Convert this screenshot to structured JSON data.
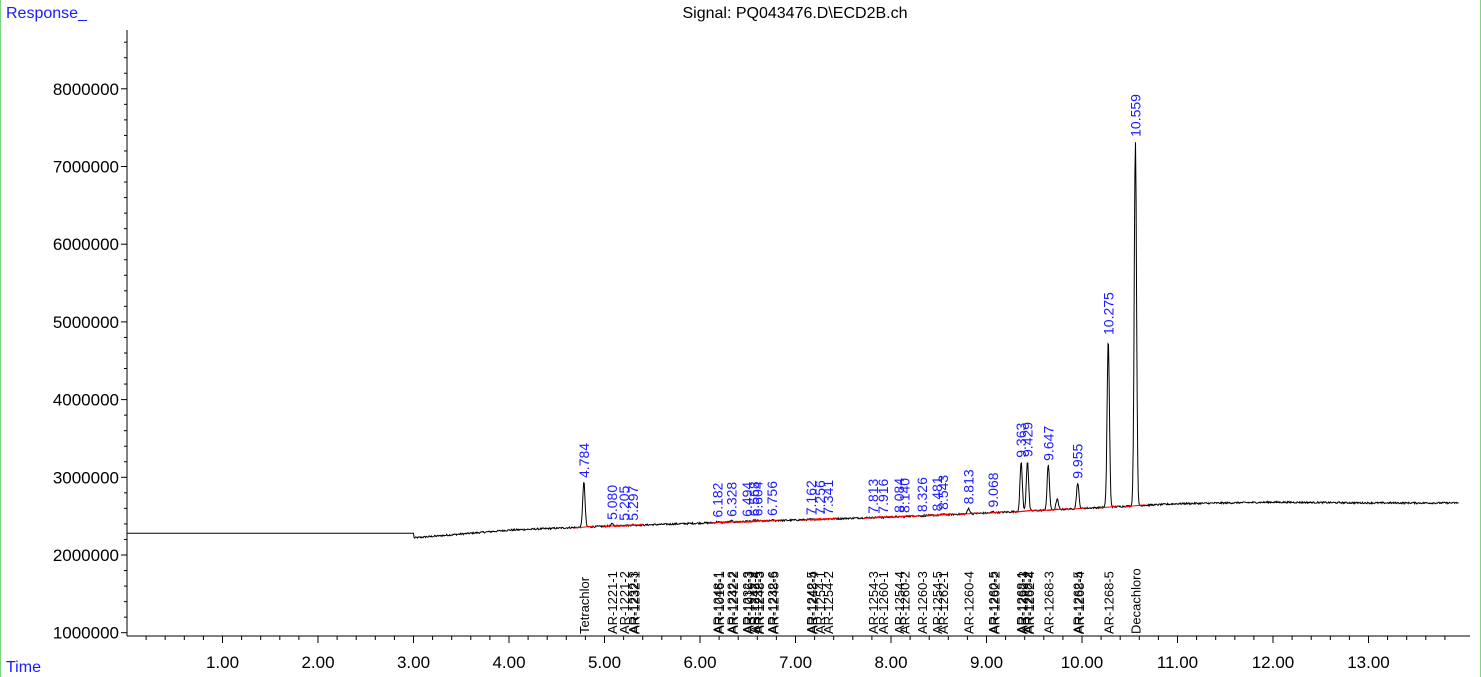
{
  "chart_data": {
    "type": "line",
    "title": "Signal: PQ043476.D\\ECD2B.ch",
    "ylabel": "Response_",
    "xlabel": "Time",
    "xlim": [
      0,
      13.95
    ],
    "ylim": [
      900000,
      8900000
    ],
    "y_ticks": [
      1000000,
      2000000,
      3000000,
      4000000,
      5000000,
      6000000,
      7000000,
      8000000
    ],
    "y_tick_labels": [
      "1000000",
      "2000000",
      "3000000",
      "4000000",
      "5000000",
      "6000000",
      "7000000",
      "8000000"
    ],
    "x_ticks": [
      1,
      2,
      3,
      4,
      5,
      6,
      7,
      8,
      9,
      10,
      11,
      12,
      13
    ],
    "x_tick_labels": [
      "1.00",
      "2.00",
      "3.00",
      "4.00",
      "5.00",
      "6.00",
      "7.00",
      "8.00",
      "9.00",
      "10.00",
      "11.00",
      "12.00",
      "13.00"
    ],
    "baseline": {
      "flat_level": 2280000,
      "flat_until": 3.0,
      "drop_level": 2220000,
      "ramp": [
        [
          3.0,
          2220000
        ],
        [
          4.0,
          2320000
        ],
        [
          5.0,
          2370000
        ],
        [
          6.0,
          2410000
        ],
        [
          7.0,
          2450000
        ],
        [
          8.0,
          2490000
        ],
        [
          9.0,
          2540000
        ],
        [
          10.0,
          2600000
        ],
        [
          11.0,
          2660000
        ],
        [
          12.0,
          2680000
        ],
        [
          13.0,
          2670000
        ],
        [
          13.95,
          2670000
        ]
      ]
    },
    "peaks": [
      {
        "rt": 4.784,
        "label": "4.784",
        "height": 2940000
      },
      {
        "rt": 5.08,
        "label": "5.080",
        "height": 2400000
      },
      {
        "rt": 5.205,
        "label": "5.205",
        "height": 2390000
      },
      {
        "rt": 5.297,
        "label": "5.297",
        "height": 2390000
      },
      {
        "rt": 6.182,
        "label": "6.182",
        "height": 2430000
      },
      {
        "rt": 6.328,
        "label": "6.328",
        "height": 2440000
      },
      {
        "rt": 6.494,
        "label": "6.494",
        "height": 2440000
      },
      {
        "rt": 6.568,
        "label": "6.568",
        "height": 2445000
      },
      {
        "rt": 6.604,
        "label": "6.604",
        "height": 2445000
      },
      {
        "rt": 6.756,
        "label": "6.756",
        "height": 2450000
      },
      {
        "rt": 7.162,
        "label": "7.162",
        "height": 2460000
      },
      {
        "rt": 7.256,
        "label": "7.256",
        "height": 2460000
      },
      {
        "rt": 7.341,
        "label": "7.341",
        "height": 2465000
      },
      {
        "rt": 7.813,
        "label": "7.813",
        "height": 2480000
      },
      {
        "rt": 7.916,
        "label": "7.916",
        "height": 2480000
      },
      {
        "rt": 8.084,
        "label": "8.084",
        "height": 2490000
      },
      {
        "rt": 8.14,
        "label": "8.140",
        "height": 2490000
      },
      {
        "rt": 8.326,
        "label": "8.326",
        "height": 2500000
      },
      {
        "rt": 8.481,
        "label": "8.481",
        "height": 2510000
      },
      {
        "rt": 8.543,
        "label": "8.543",
        "height": 2530000
      },
      {
        "rt": 8.813,
        "label": "8.813",
        "height": 2600000
      },
      {
        "rt": 9.068,
        "label": "9.068",
        "height": 2560000
      },
      {
        "rt": 9.363,
        "label": "9.363",
        "height": 3200000
      },
      {
        "rt": 9.429,
        "label": "9.429",
        "height": 3210000
      },
      {
        "rt": 9.647,
        "label": "9.647",
        "height": 3160000
      },
      {
        "rt": 9.74,
        "label": "",
        "height": 2720000
      },
      {
        "rt": 9.955,
        "label": "9.955",
        "height": 2930000
      },
      {
        "rt": 10.275,
        "label": "10.275",
        "height": 4780000
      },
      {
        "rt": 10.559,
        "label": "10.559",
        "height": 7330000
      }
    ],
    "compounds": [
      {
        "rt": 4.784,
        "name": "Tetrachlor"
      },
      {
        "rt": 5.08,
        "name": "AR-1221-1"
      },
      {
        "rt": 5.205,
        "name": "AR-1221-2"
      },
      {
        "rt": 5.297,
        "name": "AR-1232-3"
      },
      {
        "rt": 5.297,
        "name": "AR-1232-1"
      },
      {
        "rt": 6.182,
        "name": "AR-1248-1"
      },
      {
        "rt": 6.182,
        "name": "AR-1016-1"
      },
      {
        "rt": 6.328,
        "name": "AR-1232-2"
      },
      {
        "rt": 6.328,
        "name": "AR-1242-2"
      },
      {
        "rt": 6.494,
        "name": "AR-1232-3"
      },
      {
        "rt": 6.494,
        "name": "AR-1016-3"
      },
      {
        "rt": 6.568,
        "name": "AR-1242-4"
      },
      {
        "rt": 6.604,
        "name": "AR-1232-5"
      },
      {
        "rt": 6.604,
        "name": "AR-1248-3"
      },
      {
        "rt": 6.756,
        "name": "AR-1232-6"
      },
      {
        "rt": 6.756,
        "name": "AR-1248-5"
      },
      {
        "rt": 7.162,
        "name": "AR-1242-5"
      },
      {
        "rt": 7.162,
        "name": "AR-1248-4"
      },
      {
        "rt": 7.256,
        "name": "AR-1254-1"
      },
      {
        "rt": 7.341,
        "name": "AR-1254-2"
      },
      {
        "rt": 7.813,
        "name": "AR-1254-3"
      },
      {
        "rt": 7.916,
        "name": "AR-1260-1"
      },
      {
        "rt": 8.084,
        "name": "AR-1254-4"
      },
      {
        "rt": 8.14,
        "name": "AR-1260-2"
      },
      {
        "rt": 8.326,
        "name": "AR-1260-3"
      },
      {
        "rt": 8.481,
        "name": "AR-1254-5"
      },
      {
        "rt": 8.543,
        "name": "AR-1262-1"
      },
      {
        "rt": 8.813,
        "name": "AR-1260-4"
      },
      {
        "rt": 9.068,
        "name": "AR-1260-5"
      },
      {
        "rt": 9.068,
        "name": "AR-1262-2"
      },
      {
        "rt": 9.363,
        "name": "AR-1268-1"
      },
      {
        "rt": 9.363,
        "name": "AR-1262-3"
      },
      {
        "rt": 9.429,
        "name": "AR-1268-2"
      },
      {
        "rt": 9.429,
        "name": "AR-1262-4"
      },
      {
        "rt": 9.647,
        "name": "AR-1268-3"
      },
      {
        "rt": 9.955,
        "name": "AR-1262-5"
      },
      {
        "rt": 9.955,
        "name": "AR-1268-4"
      },
      {
        "rt": 10.275,
        "name": "AR-1268-5"
      },
      {
        "rt": 10.559,
        "name": "Decachloro"
      }
    ]
  },
  "colors": {
    "trace": "#000000",
    "peak_label": "#1a1aff",
    "frame": "#7fd47f",
    "baseline_mark": "#ff0000"
  }
}
